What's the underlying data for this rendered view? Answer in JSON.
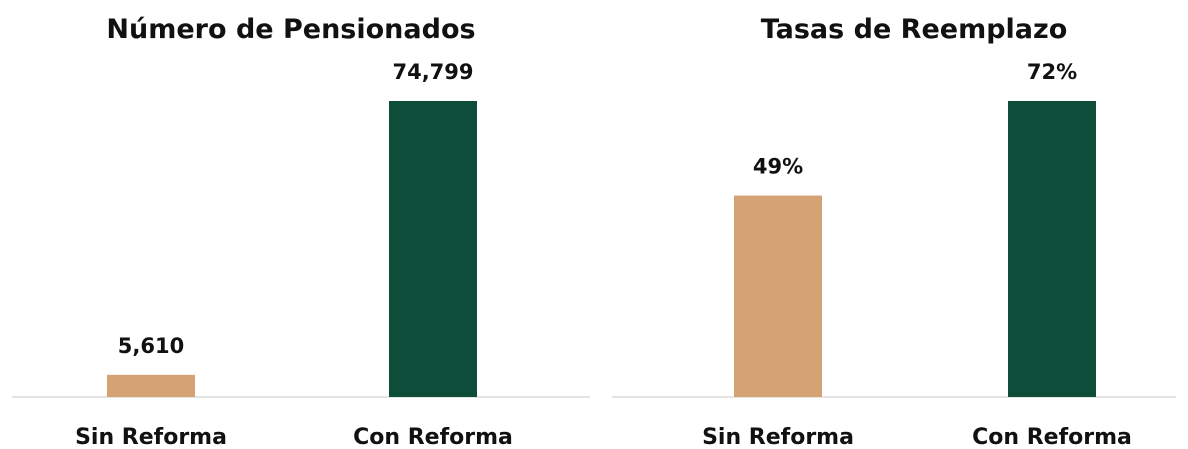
{
  "colors": {
    "sin_reforma": "#d5a273",
    "con_reforma": "#0f4d3b",
    "text": "#111111",
    "baseline": "#e4e4e4"
  },
  "chart_data": [
    {
      "type": "bar",
      "title": "Número de Pensionados",
      "categories": [
        "Sin Reforma",
        "Con Reforma"
      ],
      "values": [
        5610,
        74799
      ],
      "value_labels": [
        "5,610",
        "74,799"
      ],
      "bar_colors": [
        "#d5a273",
        "#0f4d3b"
      ],
      "ylim": [
        0,
        74799
      ],
      "grid": false,
      "legend": "none"
    },
    {
      "type": "bar",
      "title": "Tasas de Reemplazo",
      "categories": [
        "Sin Reforma",
        "Con Reforma"
      ],
      "values": [
        49,
        72
      ],
      "value_labels": [
        "49%",
        "72%"
      ],
      "bar_colors": [
        "#d5a273",
        "#0f4d3b"
      ],
      "ylim": [
        0,
        72
      ],
      "grid": false,
      "legend": "none"
    }
  ]
}
